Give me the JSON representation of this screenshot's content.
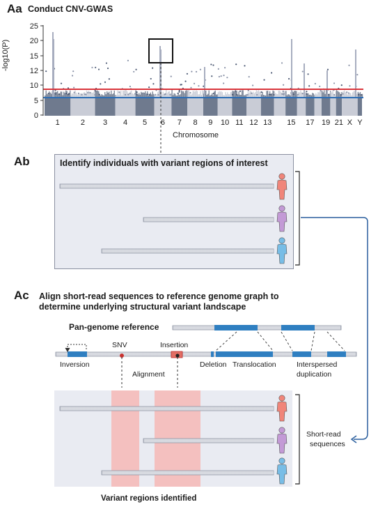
{
  "panel_aa": {
    "letter": "Aa",
    "title": "Conduct CNV-GWAS",
    "ylabel": "-log10(P)",
    "xlabel": "Chromosome",
    "yticks": [
      "25",
      "20",
      "15",
      "12",
      "10",
      "5",
      "0"
    ],
    "chromosomes": [
      "1",
      "2",
      "3",
      "4",
      "5",
      "6",
      "7",
      "8",
      "9",
      "10",
      "11",
      "12",
      "13",
      "15",
      "17",
      "19",
      "21",
      "X",
      "Y"
    ]
  },
  "panel_ab": {
    "letter": "Ab",
    "title": "Identify individuals with variant regions of interest"
  },
  "panel_ac": {
    "letter": "Ac",
    "title_line1": "Align short-read sequences to reference genome graph to",
    "title_line2": "determine underlying structural variant landscape",
    "pan_genome": "Pan-genome reference",
    "snv": "SNV",
    "insertion": "Insertion",
    "inversion": "Inversion",
    "alignment": "Alignment",
    "deletion": "Deletion",
    "translocation": "Translocation",
    "interspersed_line1": "Interspersed",
    "interspersed_line2": "duplication",
    "short_read_line1": "Short-read",
    "short_read_line2": "sequences",
    "variant_regions": "Variant regions identified"
  },
  "colors": {
    "threshold_red": "#d9343a",
    "threshold_blue": "#2b6cb3",
    "chrom_dark": "#6f7a8e",
    "chrom_light": "#c9ccd6",
    "segment_blue": "#2f7fc1",
    "person_red": "#f0857a",
    "person_purple": "#c39ad6",
    "person_blue": "#78bde6",
    "highlight": "#f6b9b6"
  }
}
